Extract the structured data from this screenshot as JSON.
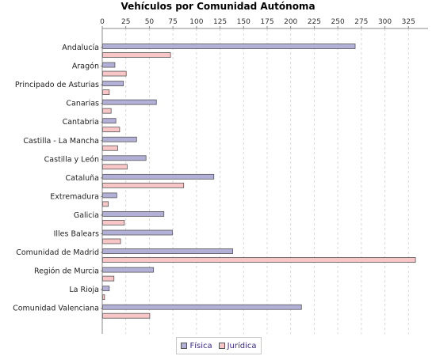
{
  "chart_data": {
    "type": "bar",
    "orientation": "horizontal",
    "title": "Vehículos por Comunidad Autónoma",
    "xlabel": "",
    "ylabel": "",
    "xlim": [
      0,
      340
    ],
    "x_ticks": [
      0,
      25,
      50,
      75,
      100,
      125,
      150,
      175,
      200,
      225,
      250,
      275,
      300,
      325
    ],
    "x_axis_position": "top",
    "grid": true,
    "legend_position": "bottom",
    "categories": [
      "Andalucía",
      "Aragón",
      "Principado de Asturias",
      "Canarias",
      "Cantabria",
      "Castilla - La Mancha",
      "Castilla y León",
      "Cataluña",
      "Extremadura",
      "Galicia",
      "Illes Balears",
      "Comunidad de Madrid",
      "Región de Murcia",
      "La Rioja",
      "Comunidad Valenciana"
    ],
    "series": [
      {
        "name": "Física",
        "color": "#b3b0d8",
        "values": [
          268,
          13,
          22,
          57,
          14,
          36,
          46,
          118,
          15,
          65,
          74,
          138,
          54,
          7,
          211
        ]
      },
      {
        "name": "Jurídica",
        "color": "#f8c6c6",
        "values": [
          72,
          25,
          7,
          9,
          18,
          16,
          26,
          86,
          6,
          23,
          19,
          332,
          12,
          2,
          50
        ]
      }
    ]
  }
}
